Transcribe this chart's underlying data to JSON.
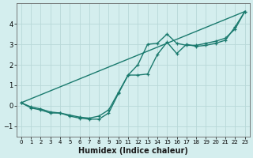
{
  "xlabel": "Humidex (Indice chaleur)",
  "background_color": "#d4eeee",
  "grid_color": "#b8d8d8",
  "line_color": "#1a7a6e",
  "xlim": [
    -0.5,
    23.5
  ],
  "ylim": [
    -1.5,
    5.0
  ],
  "yticks": [
    -1,
    0,
    1,
    2,
    3,
    4
  ],
  "xticks": [
    0,
    1,
    2,
    3,
    4,
    5,
    6,
    7,
    8,
    9,
    10,
    11,
    12,
    13,
    14,
    15,
    16,
    17,
    18,
    19,
    20,
    21,
    22,
    23
  ],
  "curve1_x": [
    0,
    1,
    2,
    3,
    4,
    5,
    6,
    7,
    8,
    9,
    10,
    11,
    12,
    13,
    14,
    15,
    16,
    17,
    18,
    19,
    20,
    21,
    22,
    23
  ],
  "curve1_y": [
    0.15,
    -0.1,
    -0.2,
    -0.35,
    -0.35,
    -0.5,
    -0.6,
    -0.65,
    -0.65,
    -0.35,
    0.6,
    1.5,
    2.0,
    3.0,
    3.05,
    3.5,
    3.05,
    2.95,
    2.95,
    3.05,
    3.15,
    3.3,
    3.75,
    4.6
  ],
  "curve2_x": [
    0,
    1,
    2,
    3,
    4,
    5,
    6,
    7,
    8,
    9,
    10,
    11,
    12,
    13,
    14,
    15,
    16,
    17,
    18,
    19,
    20,
    21,
    22,
    23
  ],
  "curve2_y": [
    0.15,
    -0.05,
    -0.15,
    -0.3,
    -0.35,
    -0.45,
    -0.55,
    -0.6,
    -0.5,
    -0.2,
    0.65,
    1.5,
    1.5,
    1.55,
    2.5,
    3.1,
    2.55,
    3.0,
    2.9,
    2.95,
    3.05,
    3.2,
    3.85,
    4.6
  ],
  "curve3_x": [
    0,
    23
  ],
  "curve3_y": [
    0.15,
    4.6
  ],
  "figsize": [
    3.2,
    2.0
  ],
  "dpi": 100
}
